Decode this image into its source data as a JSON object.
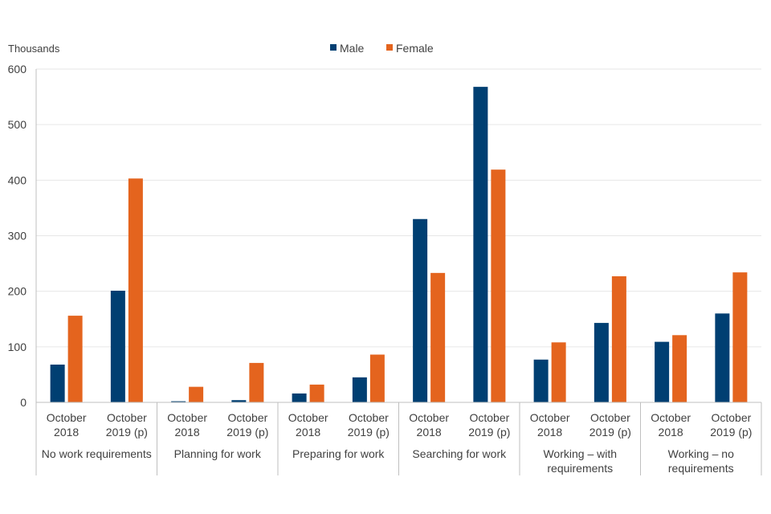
{
  "chart_data": {
    "type": "bar",
    "title": "",
    "ylabel": "Thousands",
    "xlabel": "",
    "ylim": [
      0,
      600
    ],
    "yticks": [
      0,
      100,
      200,
      300,
      400,
      500,
      600
    ],
    "grid": true,
    "legend_position": "top-center",
    "groups": [
      {
        "label": "No work requirements",
        "label_lines": [
          "No work requirements"
        ]
      },
      {
        "label": "Planning for work",
        "label_lines": [
          "Planning for work"
        ]
      },
      {
        "label": "Preparing for work",
        "label_lines": [
          "Preparing for work"
        ]
      },
      {
        "label": "Searching for work",
        "label_lines": [
          "Searching for work"
        ]
      },
      {
        "label": "Working – with requirements",
        "label_lines": [
          "Working – with",
          "requirements"
        ]
      },
      {
        "label": "Working – no requirements",
        "label_lines": [
          "Working – no",
          "requirements"
        ]
      }
    ],
    "periods": [
      {
        "label": "October 2018",
        "label_lines": [
          "October",
          "2018"
        ]
      },
      {
        "label": "October 2019 (p)",
        "label_lines": [
          "October",
          "2019 (p)"
        ]
      }
    ],
    "series": [
      {
        "name": "Male",
        "color": "#003f72",
        "values": [
          68,
          201,
          2,
          4,
          16,
          45,
          330,
          568,
          77,
          143,
          109,
          160
        ]
      },
      {
        "name": "Female",
        "color": "#e4641e",
        "values": [
          156,
          403,
          28,
          71,
          32,
          86,
          233,
          419,
          108,
          227,
          121,
          234
        ]
      }
    ]
  }
}
